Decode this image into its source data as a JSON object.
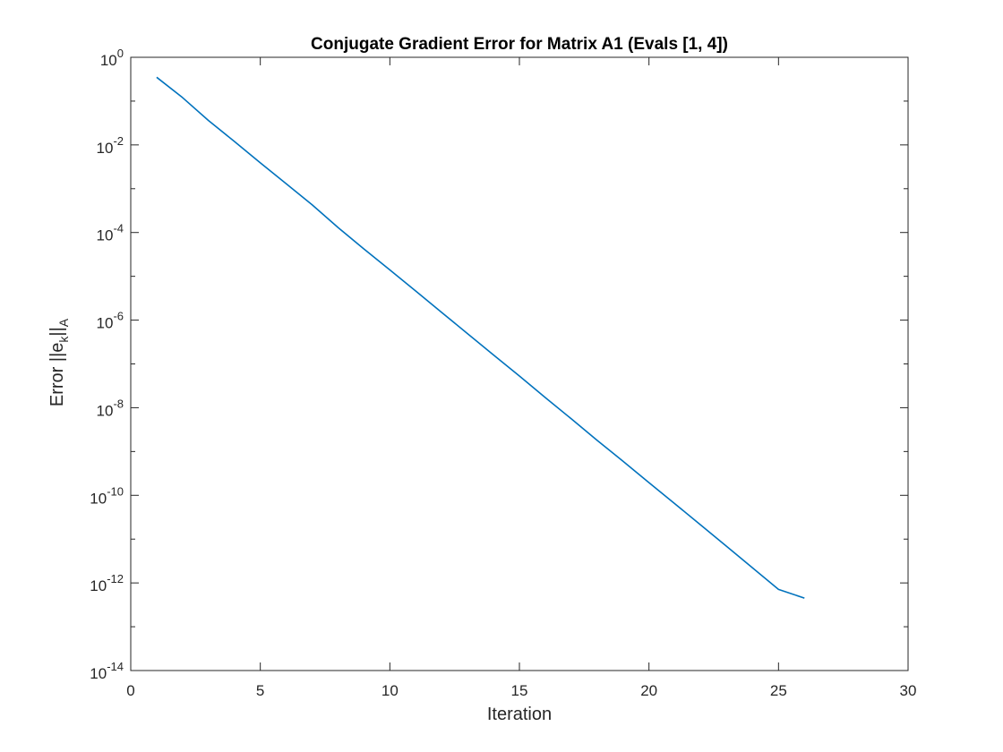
{
  "chart_data": {
    "type": "line",
    "title": "Conjugate Gradient Error for Matrix A1 (Evals [1, 4])",
    "xlabel": "Iteration",
    "ylabel": {
      "prefix": "Error ||e",
      "sub1": "k",
      "mid": "||",
      "sub2": "A"
    },
    "xlim": [
      0,
      30
    ],
    "xticks": [
      0,
      5,
      10,
      15,
      20,
      25,
      30
    ],
    "xtick_labels": [
      "0",
      "5",
      "10",
      "15",
      "20",
      "25",
      "30"
    ],
    "ylim": [
      1e-14,
      1
    ],
    "yscale": "log",
    "ytick_exponents": [
      0,
      -2,
      -4,
      -6,
      -8,
      -10,
      -12,
      -14
    ],
    "ytick_base": "10",
    "grid": false,
    "box": true,
    "series": [
      {
        "color": "#0072BD",
        "x": [
          1,
          2,
          3,
          4,
          5,
          6,
          7,
          8,
          9,
          10,
          11,
          12,
          13,
          14,
          15,
          16,
          17,
          18,
          19,
          20,
          21,
          22,
          23,
          24,
          25,
          26
        ],
        "y": [
          0.35,
          0.12,
          0.036,
          0.012,
          0.0039,
          0.0013,
          0.00043,
          0.00013,
          4.2e-05,
          1.4e-05,
          4.6e-06,
          1.5e-06,
          4.9e-07,
          1.6e-07,
          5.3e-08,
          1.7e-08,
          5.6e-09,
          1.8e-09,
          6e-10,
          1.95e-10,
          6.4e-11,
          2.1e-11,
          6.8e-12,
          2.2e-12,
          7.1e-13,
          4.5e-13
        ]
      }
    ]
  }
}
